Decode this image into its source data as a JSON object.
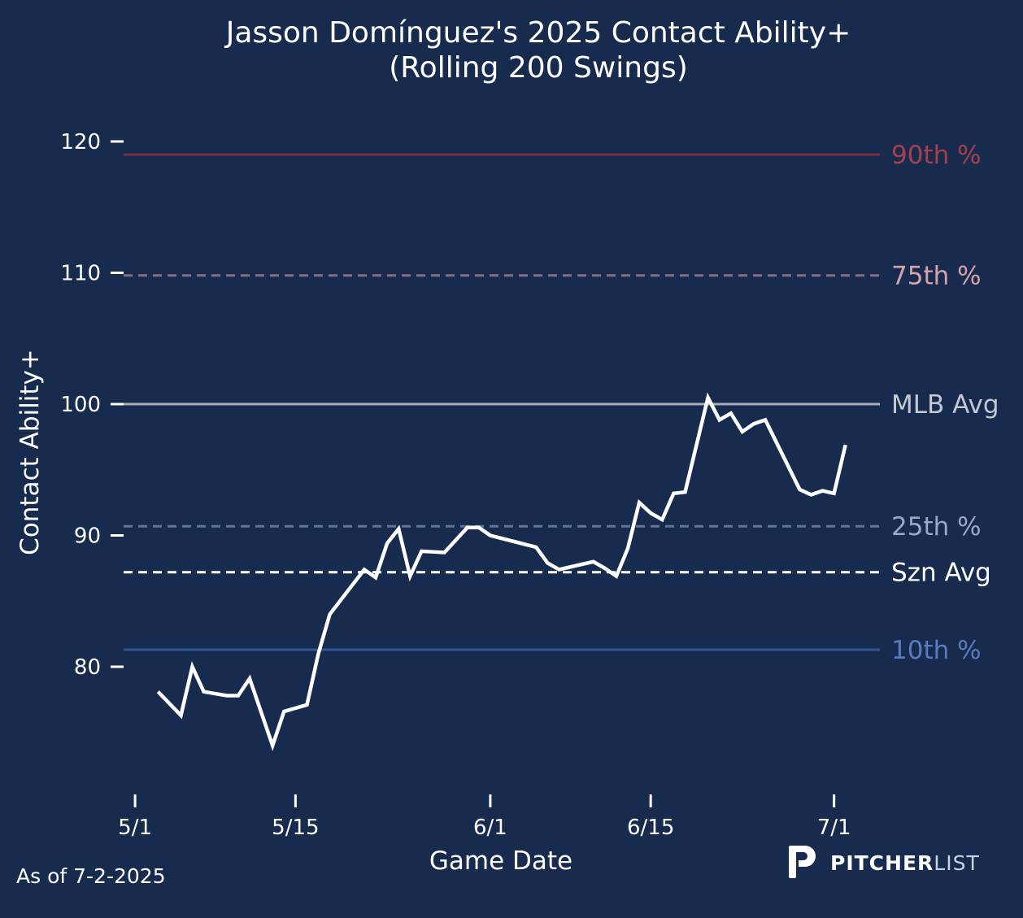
{
  "chart_data": {
    "type": "line",
    "title": "Jasson Domínguez's 2025 Contact Ability+",
    "subtitle": "(Rolling 200 Swings)",
    "xlabel": "Game Date",
    "ylabel": "Contact Ability+",
    "x_tick_labels": [
      "5/1",
      "5/15",
      "6/1",
      "6/15",
      "7/1"
    ],
    "x_tick_dates": [
      "2025-05-01",
      "2025-05-15",
      "2025-06-01",
      "2025-06-15",
      "2025-07-01"
    ],
    "y_ticks": [
      80,
      90,
      100,
      110,
      120
    ],
    "xlim": [
      "2025-04-30",
      "2025-07-05"
    ],
    "ylim": [
      71,
      123
    ],
    "grid": false,
    "reference_lines": [
      {
        "label": "90th %",
        "value": 119,
        "style": "solid",
        "color": "#7a2e3f",
        "label_color": "#a6404f"
      },
      {
        "label": "75th %",
        "value": 109.8,
        "style": "dashed",
        "color": "#8a6d80",
        "label_color": "#d8a3a8"
      },
      {
        "label": "MLB Avg",
        "value": 100,
        "style": "solid",
        "color": "#a8adb8",
        "label_color": "#c4c8d2"
      },
      {
        "label": "25th %",
        "value": 90.7,
        "style": "dashed",
        "color": "#5f7594",
        "label_color": "#9aaac4"
      },
      {
        "label": "Szn Avg",
        "value": 87.2,
        "style": "dashed",
        "color": "#ffffff",
        "label_color": "#ffffff"
      },
      {
        "label": "10th %",
        "value": 81.3,
        "style": "solid",
        "color": "#2f5595",
        "label_color": "#5a7cbf"
      }
    ],
    "series": [
      {
        "color": "#ffffff",
        "points": [
          [
            "2025-05-03",
            78.1
          ],
          [
            "2025-05-05",
            76.3
          ],
          [
            "2025-05-06",
            80.0
          ],
          [
            "2025-05-07",
            78.1
          ],
          [
            "2025-05-09",
            77.8
          ],
          [
            "2025-05-10",
            77.8
          ],
          [
            "2025-05-11",
            79.1
          ],
          [
            "2025-05-13",
            74.0
          ],
          [
            "2025-05-14",
            76.6
          ],
          [
            "2025-05-16",
            77.1
          ],
          [
            "2025-05-17",
            81.0
          ],
          [
            "2025-05-18",
            84.0
          ],
          [
            "2025-05-21",
            87.4
          ],
          [
            "2025-05-22",
            86.8
          ],
          [
            "2025-05-23",
            89.4
          ],
          [
            "2025-05-24",
            90.5
          ],
          [
            "2025-05-25",
            86.9
          ],
          [
            "2025-05-26",
            88.8
          ],
          [
            "2025-05-28",
            88.7
          ],
          [
            "2025-05-30",
            90.6
          ],
          [
            "2025-05-31",
            90.6
          ],
          [
            "2025-06-01",
            90.0
          ],
          [
            "2025-06-05",
            89.1
          ],
          [
            "2025-06-06",
            87.9
          ],
          [
            "2025-06-07",
            87.4
          ],
          [
            "2025-06-10",
            88.0
          ],
          [
            "2025-06-11",
            87.5
          ],
          [
            "2025-06-12",
            86.9
          ],
          [
            "2025-06-13",
            89.0
          ],
          [
            "2025-06-14",
            92.5
          ],
          [
            "2025-06-15",
            91.7
          ],
          [
            "2025-06-16",
            91.2
          ],
          [
            "2025-06-17",
            93.2
          ],
          [
            "2025-06-18",
            93.3
          ],
          [
            "2025-06-20",
            100.5
          ],
          [
            "2025-06-21",
            98.8
          ],
          [
            "2025-06-22",
            99.3
          ],
          [
            "2025-06-23",
            97.9
          ],
          [
            "2025-06-24",
            98.5
          ],
          [
            "2025-06-25",
            98.8
          ],
          [
            "2025-06-28",
            93.5
          ],
          [
            "2025-06-29",
            93.1
          ],
          [
            "2025-06-30",
            93.4
          ],
          [
            "2025-07-01",
            93.2
          ],
          [
            "2025-07-02",
            96.9
          ]
        ]
      }
    ]
  },
  "footer": {
    "as_of": "As of 7-2-2025",
    "brand_bold": "PITCHER",
    "brand_light": "LIST",
    "logo_icon": "pitcherlist-p-logo"
  },
  "colors": {
    "background": "#172b4f",
    "text": "#ffffff",
    "brand_light": "#c9d2e2"
  }
}
